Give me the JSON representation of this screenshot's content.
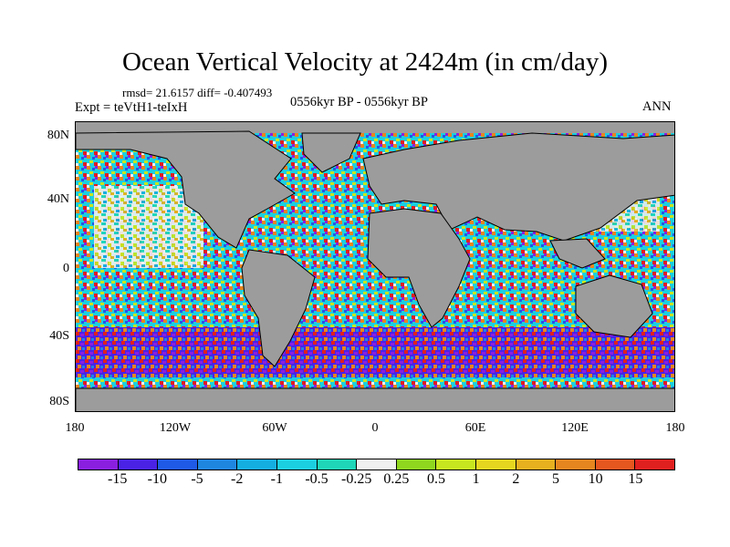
{
  "header": {
    "title": "Ocean Vertical Velocity at 2424m (in cm/day)",
    "stats": "rmsd= 21.6157 diff= -0.407493",
    "experiment": "Expt = teVtH1-teIxH",
    "period": "0556kyr BP - 0556kyr BP",
    "season": "ANN"
  },
  "map": {
    "land_color": "#9c9c9c",
    "coastline_color": "#000000",
    "lat_labels": [
      "80N",
      "40N",
      "0",
      "40S",
      "80S"
    ],
    "lon_labels": [
      "180",
      "120W",
      "60W",
      "0",
      "60E",
      "120E",
      "180"
    ]
  },
  "colorbar": {
    "labels": [
      "-15",
      "-10",
      "-5",
      "-2",
      "-1",
      "-0.5",
      "-0.25",
      "0.25",
      "0.5",
      "1",
      "2",
      "5",
      "10",
      "15"
    ],
    "colors": [
      "#8a1fe0",
      "#4a22e6",
      "#1f5ae6",
      "#1f86e0",
      "#14aee0",
      "#1ccfe0",
      "#1fd6b8",
      "#f0f0f0",
      "#8fd61f",
      "#c8e61f",
      "#e6d61f",
      "#e6b01f",
      "#e6861f",
      "#e6561f",
      "#e01f1f"
    ]
  }
}
